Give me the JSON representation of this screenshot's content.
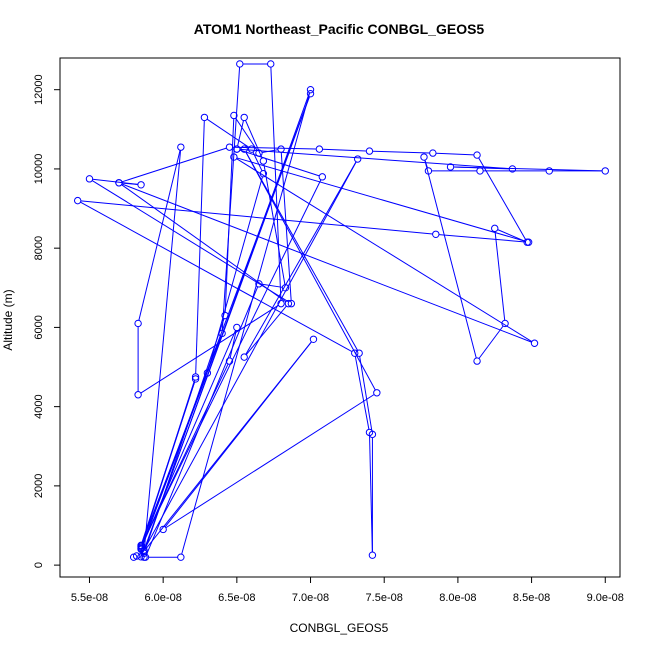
{
  "chart_data": {
    "type": "line",
    "title": "ATOM1 Northeast_Pacific CONBGL_GEOS5",
    "xlabel": "CONBGL_GEOS5",
    "ylabel": "Altitude (m)",
    "xlim": [
      5.3e-08,
      9.1e-08
    ],
    "ylim": [
      -300,
      12800
    ],
    "xticks": [
      {
        "value": 5.5e-08,
        "label": "5.5e-08"
      },
      {
        "value": 6e-08,
        "label": "6.0e-08"
      },
      {
        "value": 6.5e-08,
        "label": "6.5e-08"
      },
      {
        "value": 7e-08,
        "label": "7.0e-08"
      },
      {
        "value": 7.5e-08,
        "label": "7.5e-08"
      },
      {
        "value": 8e-08,
        "label": "8.0e-08"
      },
      {
        "value": 8.5e-08,
        "label": "8.5e-08"
      },
      {
        "value": 9e-08,
        "label": "9.0e-08"
      }
    ],
    "yticks": [
      {
        "value": 0,
        "label": "0"
      },
      {
        "value": 2000,
        "label": "2000"
      },
      {
        "value": 4000,
        "label": "4000"
      },
      {
        "value": 6000,
        "label": "6000"
      },
      {
        "value": 8000,
        "label": "8000"
      },
      {
        "value": 10000,
        "label": "10000"
      },
      {
        "value": 12000,
        "label": "12000"
      }
    ],
    "grid": false,
    "series": [
      {
        "color": "#0000ff",
        "marker": "open-circle",
        "points": [
          [
            5.8e-08,
            200
          ],
          [
            5.82e-08,
            230
          ],
          [
            5.85e-08,
            210
          ],
          [
            5.87e-08,
            200
          ],
          [
            5.85e-08,
            400
          ],
          [
            6.3e-08,
            4850
          ],
          [
            6.68e-08,
            9880
          ],
          [
            6.6e-08,
            10500
          ],
          [
            6.28e-08,
            11300
          ],
          [
            6.22e-08,
            4750
          ],
          [
            5.85e-08,
            450
          ],
          [
            6.22e-08,
            4700
          ],
          [
            5.85e-08,
            500
          ],
          [
            6.4e-08,
            5850
          ],
          [
            6.52e-08,
            12650
          ],
          [
            6.73e-08,
            12650
          ],
          [
            6.8e-08,
            6600
          ],
          [
            5.83e-08,
            4300
          ],
          [
            5.83e-08,
            6100
          ],
          [
            6.12e-08,
            10550
          ],
          [
            5.87e-08,
            300
          ],
          [
            6.42e-08,
            6300
          ],
          [
            6.48e-08,
            11350
          ],
          [
            6.65e-08,
            10400
          ],
          [
            6.8e-08,
            10500
          ],
          [
            6.87e-08,
            6600
          ],
          [
            5.5e-08,
            9750
          ],
          [
            5.85e-08,
            9600
          ],
          [
            5.7e-08,
            9650
          ],
          [
            6.45e-08,
            10550
          ],
          [
            7.06e-08,
            10500
          ],
          [
            7.4e-08,
            10450
          ],
          [
            7.83e-08,
            10400
          ],
          [
            8.13e-08,
            10350
          ],
          [
            8.47e-08,
            8150
          ],
          [
            8.25e-08,
            8500
          ],
          [
            8.32e-08,
            6100
          ],
          [
            8.13e-08,
            5150
          ],
          [
            7.77e-08,
            10300
          ],
          [
            7.8e-08,
            9950
          ],
          [
            8.15e-08,
            9950
          ],
          [
            8.62e-08,
            9950
          ],
          [
            9e-08,
            9950
          ],
          [
            7.95e-08,
            10050
          ],
          [
            8.37e-08,
            10000
          ],
          [
            6.5e-08,
            10500
          ],
          [
            6.55e-08,
            11300
          ],
          [
            6.68e-08,
            10200
          ],
          [
            6.83e-08,
            7000
          ],
          [
            6.65e-08,
            7100
          ],
          [
            5.88e-08,
            200
          ],
          [
            6.12e-08,
            200
          ],
          [
            7e-08,
            12000
          ],
          [
            5.87e-08,
            350
          ],
          [
            7.02e-08,
            5700
          ],
          [
            6e-08,
            900
          ],
          [
            7.45e-08,
            4350
          ],
          [
            6.55e-08,
            10500
          ],
          [
            7.33e-08,
            5350
          ],
          [
            7.42e-08,
            3300
          ],
          [
            7.42e-08,
            250
          ],
          [
            7.4e-08,
            3350
          ],
          [
            7.3e-08,
            5350
          ],
          [
            5.42e-08,
            9200
          ],
          [
            7.85e-08,
            8350
          ],
          [
            8.48e-08,
            8150
          ],
          [
            6.48e-08,
            10300
          ],
          [
            8.52e-08,
            5600
          ],
          [
            5.7e-08,
            9650
          ],
          [
            6.85e-08,
            6600
          ],
          [
            6.55e-08,
            5250
          ],
          [
            7.32e-08,
            10250
          ],
          [
            5.87e-08,
            380
          ],
          [
            7e-08,
            11900
          ],
          [
            5.85e-08,
            420
          ],
          [
            6.5e-08,
            6000
          ],
          [
            6.45e-08,
            5150
          ],
          [
            5.85e-08,
            480
          ],
          [
            7.08e-08,
            9800
          ],
          [
            6.5e-08,
            10500
          ]
        ]
      }
    ]
  }
}
